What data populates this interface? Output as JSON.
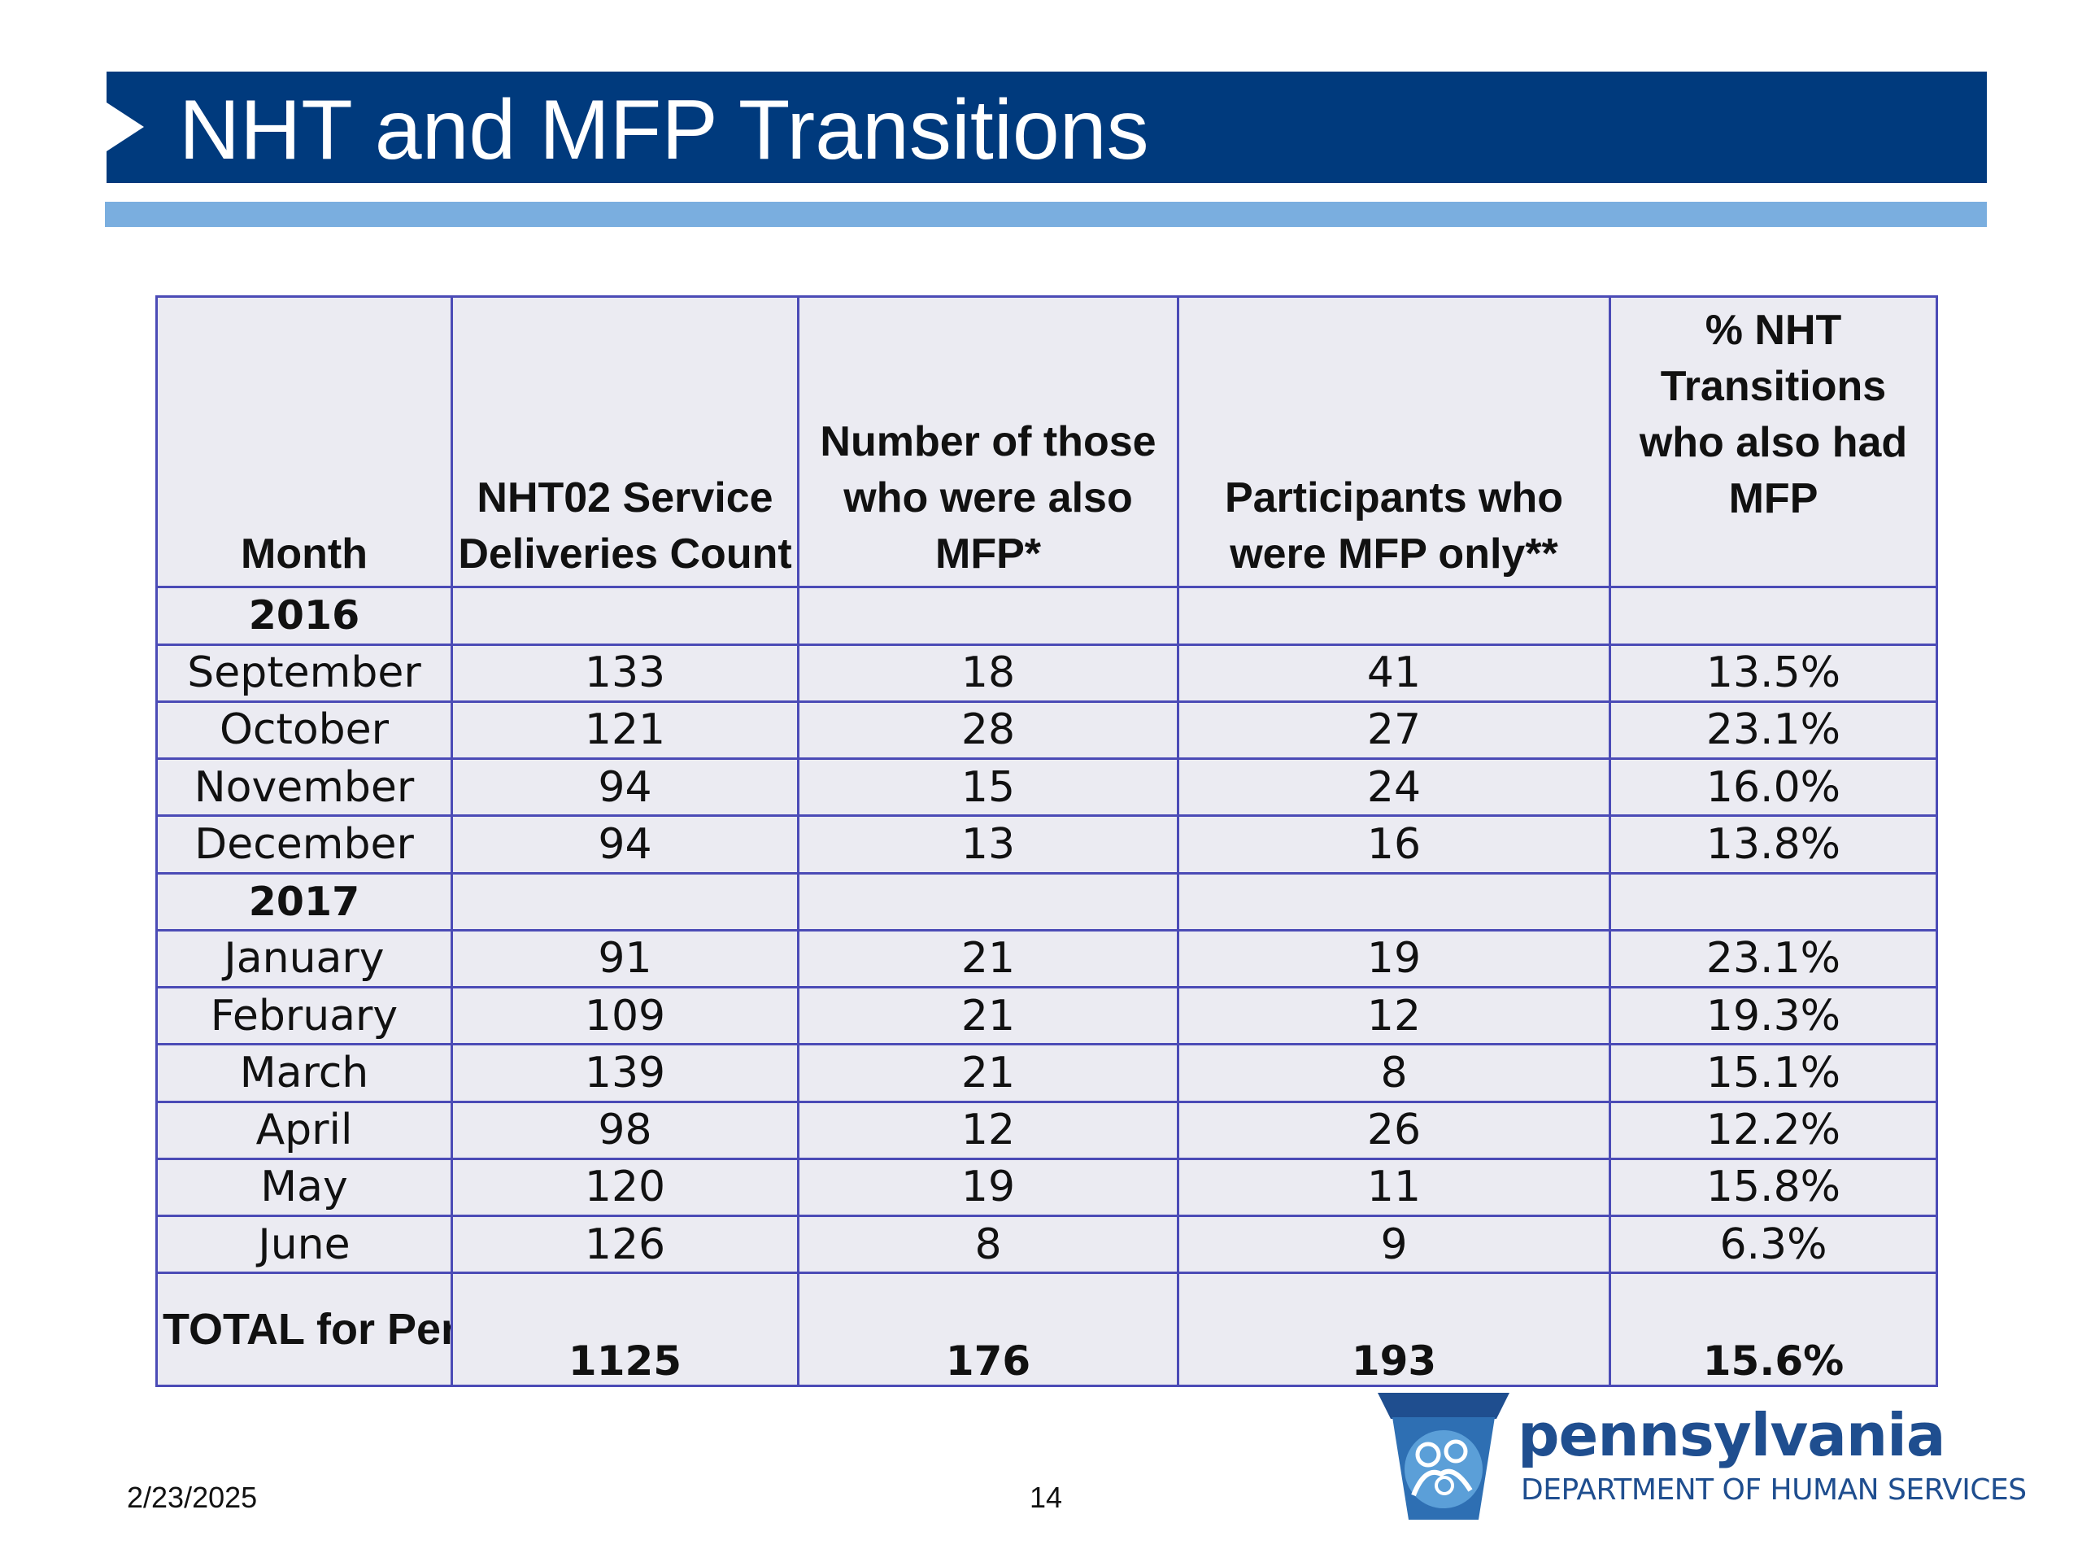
{
  "slide": {
    "title": "NHT and MFP Transitions",
    "date": "2/23/2025",
    "page_number": "14"
  },
  "table": {
    "headers": [
      "Month",
      "NHT02 Service Deliveries Count",
      "Number of those who were also MFP*",
      "Participants who were MFP only**",
      "% NHT Transitions who also had MFP"
    ],
    "groups": [
      {
        "year": "2016",
        "rows": [
          [
            "September",
            "133",
            "18",
            "41",
            "13.5%"
          ],
          [
            "October",
            "121",
            "28",
            "27",
            "23.1%"
          ],
          [
            "November",
            "94",
            "15",
            "24",
            "16.0%"
          ],
          [
            "December",
            "94",
            "13",
            "16",
            "13.8%"
          ]
        ]
      },
      {
        "year": "2017",
        "rows": [
          [
            "January",
            "91",
            "21",
            "19",
            "23.1%"
          ],
          [
            "February",
            "109",
            "21",
            "12",
            "19.3%"
          ],
          [
            "March",
            "139",
            "21",
            "8",
            "15.1%"
          ],
          [
            "April",
            "98",
            "12",
            "26",
            "12.2%"
          ],
          [
            "May",
            "120",
            "19",
            "11",
            "15.8%"
          ],
          [
            "June",
            "126",
            "8",
            "9",
            "6.3%"
          ]
        ]
      }
    ],
    "total": [
      "TOTAL for Period",
      "1125",
      "176",
      "193",
      "15.6%"
    ]
  },
  "logo": {
    "name": "pennsylvania",
    "department": "DEPARTMENT OF HUMAN SERVICES"
  },
  "colors": {
    "title_bar": "#003a7d",
    "accent_bar": "#7aaedf",
    "table_border": "#4b4bb6",
    "table_fill": "#ebebf2",
    "logo_blue": "#1f4e8f"
  }
}
